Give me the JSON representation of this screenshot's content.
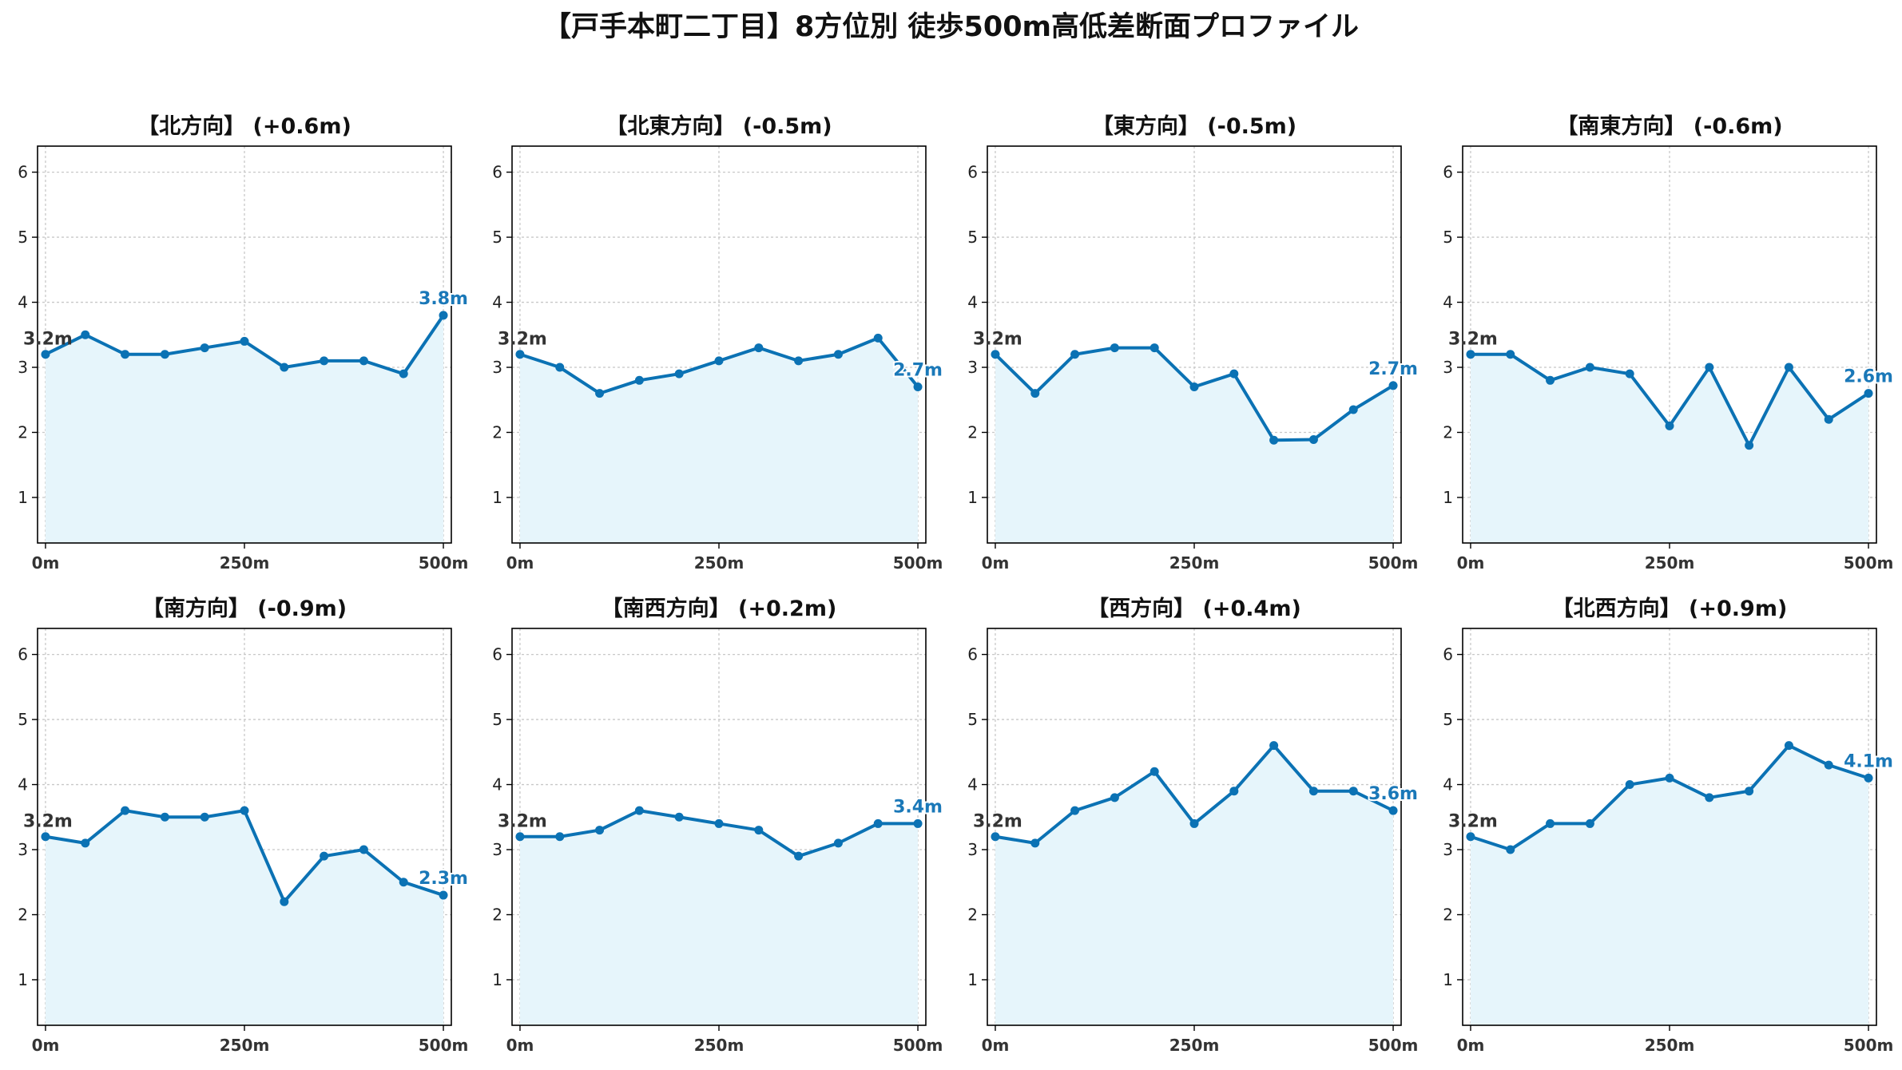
{
  "title": "【戸手本町二丁目】8方位別 徒歩500m高低差断面プロファイル",
  "colors": {
    "line": "#0b72b4",
    "fill": "#e6f5fb",
    "grid": "#c8c8c8",
    "axis": "#000000",
    "end_label": "#1a78b8"
  },
  "chart_data": [
    {
      "type": "area",
      "title": "【北方向】 (+0.6m)",
      "x": [
        0,
        50,
        100,
        150,
        200,
        250,
        300,
        350,
        400,
        450,
        500
      ],
      "values": [
        3.2,
        3.5,
        3.2,
        3.2,
        3.3,
        3.4,
        3.0,
        3.1,
        3.1,
        2.9,
        3.8
      ],
      "start_label": "3.2m",
      "end_label": "3.8m",
      "xlim": [
        -10,
        510
      ],
      "ylim": [
        0.3,
        6.4
      ],
      "yticks": [
        1,
        2,
        3,
        4,
        5,
        6
      ],
      "xtick_labels": [
        "0m",
        "250m",
        "500m"
      ],
      "xtick_values": [
        0,
        250,
        500
      ],
      "grid": true
    },
    {
      "type": "area",
      "title": "【北東方向】 (-0.5m)",
      "x": [
        0,
        50,
        100,
        150,
        200,
        250,
        300,
        350,
        400,
        450,
        500
      ],
      "values": [
        3.2,
        3.0,
        2.6,
        2.8,
        2.9,
        3.1,
        3.3,
        3.1,
        3.2,
        3.45,
        2.7
      ],
      "start_label": "3.2m",
      "end_label": "2.7m",
      "xlim": [
        -10,
        510
      ],
      "ylim": [
        0.3,
        6.4
      ],
      "yticks": [
        1,
        2,
        3,
        4,
        5,
        6
      ],
      "xtick_labels": [
        "0m",
        "250m",
        "500m"
      ],
      "xtick_values": [
        0,
        250,
        500
      ],
      "grid": true
    },
    {
      "type": "area",
      "title": "【東方向】 (-0.5m)",
      "x": [
        0,
        50,
        100,
        150,
        200,
        250,
        300,
        350,
        400,
        450,
        500
      ],
      "values": [
        3.2,
        2.6,
        3.2,
        3.3,
        3.3,
        2.7,
        2.9,
        1.88,
        1.89,
        2.35,
        2.72
      ],
      "start_label": "3.2m",
      "end_label": "2.7m",
      "xlim": [
        -10,
        510
      ],
      "ylim": [
        0.3,
        6.4
      ],
      "yticks": [
        1,
        2,
        3,
        4,
        5,
        6
      ],
      "xtick_labels": [
        "0m",
        "250m",
        "500m"
      ],
      "xtick_values": [
        0,
        250,
        500
      ],
      "grid": true
    },
    {
      "type": "area",
      "title": "【南東方向】 (-0.6m)",
      "x": [
        0,
        50,
        100,
        150,
        200,
        250,
        300,
        350,
        400,
        450,
        500
      ],
      "values": [
        3.2,
        3.2,
        2.8,
        3.0,
        2.9,
        2.1,
        3.0,
        1.8,
        3.0,
        2.2,
        2.6
      ],
      "start_label": "3.2m",
      "end_label": "2.6m",
      "xlim": [
        -10,
        510
      ],
      "ylim": [
        0.3,
        6.4
      ],
      "yticks": [
        1,
        2,
        3,
        4,
        5,
        6
      ],
      "xtick_labels": [
        "0m",
        "250m",
        "500m"
      ],
      "xtick_values": [
        0,
        250,
        500
      ],
      "grid": true
    },
    {
      "type": "area",
      "title": "【南方向】 (-0.9m)",
      "x": [
        0,
        50,
        100,
        150,
        200,
        250,
        300,
        350,
        400,
        450,
        500
      ],
      "values": [
        3.2,
        3.1,
        3.6,
        3.5,
        3.5,
        3.6,
        2.2,
        2.9,
        3.0,
        2.5,
        2.3
      ],
      "start_label": "3.2m",
      "end_label": "2.3m",
      "xlim": [
        -10,
        510
      ],
      "ylim": [
        0.3,
        6.4
      ],
      "yticks": [
        1,
        2,
        3,
        4,
        5,
        6
      ],
      "xtick_labels": [
        "0m",
        "250m",
        "500m"
      ],
      "xtick_values": [
        0,
        250,
        500
      ],
      "grid": true
    },
    {
      "type": "area",
      "title": "【南西方向】 (+0.2m)",
      "x": [
        0,
        50,
        100,
        150,
        200,
        250,
        300,
        350,
        400,
        450,
        500
      ],
      "values": [
        3.2,
        3.2,
        3.3,
        3.6,
        3.5,
        3.4,
        3.3,
        2.9,
        3.1,
        3.4,
        3.4
      ],
      "start_label": "3.2m",
      "end_label": "3.4m",
      "xlim": [
        -10,
        510
      ],
      "ylim": [
        0.3,
        6.4
      ],
      "yticks": [
        1,
        2,
        3,
        4,
        5,
        6
      ],
      "xtick_labels": [
        "0m",
        "250m",
        "500m"
      ],
      "xtick_values": [
        0,
        250,
        500
      ],
      "grid": true
    },
    {
      "type": "area",
      "title": "【西方向】 (+0.4m)",
      "x": [
        0,
        50,
        100,
        150,
        200,
        250,
        300,
        350,
        400,
        450,
        500
      ],
      "values": [
        3.2,
        3.1,
        3.6,
        3.8,
        4.2,
        3.4,
        3.9,
        4.6,
        3.9,
        3.9,
        3.6
      ],
      "start_label": "3.2m",
      "end_label": "3.6m",
      "xlim": [
        -10,
        510
      ],
      "ylim": [
        0.3,
        6.4
      ],
      "yticks": [
        1,
        2,
        3,
        4,
        5,
        6
      ],
      "xtick_labels": [
        "0m",
        "250m",
        "500m"
      ],
      "xtick_values": [
        0,
        250,
        500
      ],
      "grid": true
    },
    {
      "type": "area",
      "title": "【北西方向】 (+0.9m)",
      "x": [
        0,
        50,
        100,
        150,
        200,
        250,
        300,
        350,
        400,
        450,
        500
      ],
      "values": [
        3.2,
        3.0,
        3.4,
        3.4,
        4.0,
        4.1,
        3.8,
        3.9,
        4.6,
        4.3,
        4.1
      ],
      "start_label": "3.2m",
      "end_label": "4.1m",
      "xlim": [
        -10,
        510
      ],
      "ylim": [
        0.3,
        6.4
      ],
      "yticks": [
        1,
        2,
        3,
        4,
        5,
        6
      ],
      "xtick_labels": [
        "0m",
        "250m",
        "500m"
      ],
      "xtick_values": [
        0,
        250,
        500
      ],
      "grid": true
    }
  ]
}
